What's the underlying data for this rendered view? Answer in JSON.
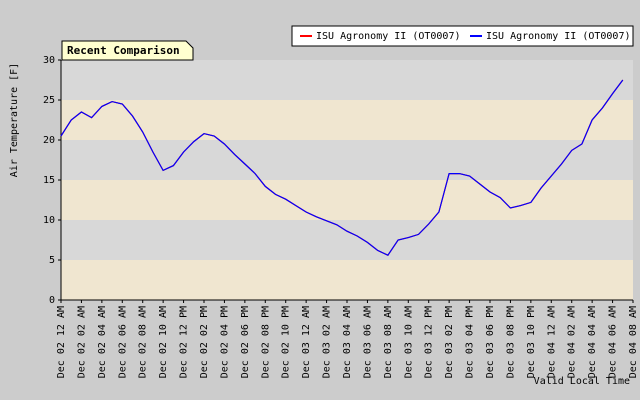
{
  "chart_data": {
    "type": "line",
    "title": "Recent Comparison",
    "ylabel": "Air Temperature [F]",
    "xlabel": "Valid Local Time",
    "x": [
      0,
      1,
      2,
      3,
      4,
      5,
      6,
      7,
      8,
      9,
      10,
      11,
      12,
      13,
      14,
      15,
      16,
      17,
      18,
      19,
      20,
      21,
      22,
      23,
      24,
      25,
      26,
      27,
      28,
      29,
      30,
      31,
      32,
      33,
      34,
      35,
      36,
      37,
      38,
      39,
      40,
      41,
      42,
      43,
      44,
      45,
      46,
      47,
      48,
      49,
      50,
      51,
      52,
      53,
      54,
      55
    ],
    "series": [
      {
        "name": "ISU Agronomy II (OT0007)",
        "color": "#ff0000",
        "values": [
          20.5,
          22.5,
          23.5,
          22.8,
          24.2,
          24.8,
          24.5,
          23,
          21,
          18.5,
          16.2,
          16.8,
          18.5,
          19.8,
          20.8,
          20.5,
          19.5,
          18.2,
          17,
          15.8,
          14.2,
          13.2,
          12.6,
          11.8,
          11,
          10.4,
          9.9,
          9.4,
          8.6,
          8,
          7.2,
          6.2,
          5.6,
          7.5,
          7.8,
          8.2,
          9.5,
          11,
          15.8,
          15.8,
          15.5,
          14.5,
          13.5,
          12.8,
          11.5,
          11.8,
          12.2,
          14,
          15.5,
          17,
          18.7,
          19.5,
          22.5,
          24,
          25.8,
          27.5
        ]
      },
      {
        "name": "ISU Agronomy II (OT0007)",
        "color": "#0000ff",
        "values": [
          20.5,
          22.5,
          23.5,
          22.8,
          24.2,
          24.8,
          24.5,
          23,
          21,
          18.5,
          16.2,
          16.8,
          18.5,
          19.8,
          20.8,
          20.5,
          19.5,
          18.2,
          17,
          15.8,
          14.2,
          13.2,
          12.6,
          11.8,
          11,
          10.4,
          9.9,
          9.4,
          8.6,
          8,
          7.2,
          6.2,
          5.6,
          7.5,
          7.8,
          8.2,
          9.5,
          11,
          15.8,
          15.8,
          15.5,
          14.5,
          13.5,
          12.8,
          11.5,
          11.8,
          12.2,
          14,
          15.5,
          17,
          18.7,
          19.5,
          22.5,
          24,
          25.8,
          27.5
        ]
      }
    ],
    "xlim": [
      0,
      56
    ],
    "xticks": [
      {
        "value": 0,
        "label": "Dec 02 12 AM"
      },
      {
        "value": 2,
        "label": "Dec 02 02 AM"
      },
      {
        "value": 4,
        "label": "Dec 02 04 AM"
      },
      {
        "value": 6,
        "label": "Dec 02 06 AM"
      },
      {
        "value": 8,
        "label": "Dec 02 08 AM"
      },
      {
        "value": 10,
        "label": "Dec 02 10 AM"
      },
      {
        "value": 12,
        "label": "Dec 02 12 PM"
      },
      {
        "value": 14,
        "label": "Dec 02 02 PM"
      },
      {
        "value": 16,
        "label": "Dec 02 04 PM"
      },
      {
        "value": 18,
        "label": "Dec 02 06 PM"
      },
      {
        "value": 20,
        "label": "Dec 02 08 PM"
      },
      {
        "value": 22,
        "label": "Dec 02 10 PM"
      },
      {
        "value": 24,
        "label": "Dec 03 12 AM"
      },
      {
        "value": 26,
        "label": "Dec 03 02 AM"
      },
      {
        "value": 28,
        "label": "Dec 03 04 AM"
      },
      {
        "value": 30,
        "label": "Dec 03 06 AM"
      },
      {
        "value": 32,
        "label": "Dec 03 08 AM"
      },
      {
        "value": 34,
        "label": "Dec 03 10 AM"
      },
      {
        "value": 36,
        "label": "Dec 03 12 PM"
      },
      {
        "value": 38,
        "label": "Dec 03 02 PM"
      },
      {
        "value": 40,
        "label": "Dec 03 04 PM"
      },
      {
        "value": 42,
        "label": "Dec 03 06 PM"
      },
      {
        "value": 44,
        "label": "Dec 03 08 PM"
      },
      {
        "value": 46,
        "label": "Dec 03 10 PM"
      },
      {
        "value": 48,
        "label": "Dec 04 12 AM"
      },
      {
        "value": 50,
        "label": "Dec 04 02 AM"
      },
      {
        "value": 52,
        "label": "Dec 04 04 AM"
      },
      {
        "value": 54,
        "label": "Dec 04 06 AM"
      },
      {
        "value": 56,
        "label": "Dec 04 08 AM"
      }
    ],
    "ylim": [
      0,
      30
    ],
    "yticks": [
      0,
      5,
      10,
      15,
      20,
      25,
      30
    ],
    "grid": true,
    "legend": "top-right"
  }
}
